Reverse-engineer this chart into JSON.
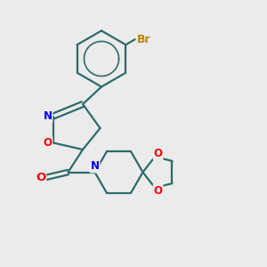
{
  "bg_color": "#ebebeb",
  "bond_color": "#2d6b6b",
  "bond_width": 1.6,
  "atom_colors": {
    "N": "#0000ff",
    "O": "#ff0000",
    "Br": "#b8860b",
    "C": "#000000"
  },
  "font_size": 8.5,
  "fig_size": [
    3.0,
    3.0
  ],
  "dpi": 100,
  "xlim": [
    0.0,
    10.0
  ],
  "ylim": [
    0.0,
    10.0
  ]
}
